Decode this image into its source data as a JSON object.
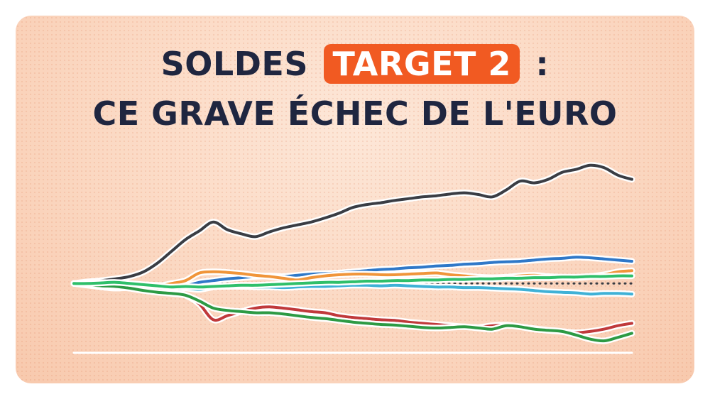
{
  "title": {
    "line1_before": "SOLDES",
    "line1_highlight": "TARGET 2",
    "line1_after": ":",
    "line2": "CE GRAVE ÉCHEC DE L'EURO"
  },
  "colors": {
    "accent": "#f15a22",
    "title_text": "#1f2640",
    "background": "#fbd8c2"
  },
  "chart_data": {
    "type": "line",
    "title": "",
    "xlabel": "",
    "ylabel": "",
    "x": [
      0,
      1,
      2,
      3,
      4,
      5,
      6,
      7,
      8,
      9,
      10,
      11,
      12,
      13,
      14,
      15,
      16,
      17,
      18,
      19,
      20,
      21,
      22,
      23,
      24,
      25,
      26,
      27,
      28,
      29,
      30,
      31,
      32,
      33,
      34,
      35,
      36,
      37,
      38,
      39,
      40
    ],
    "ylim": [
      -1.1,
      2.2
    ],
    "grid": false,
    "legend": "none",
    "series": [
      {
        "color": "#3a3d44",
        "values": [
          0,
          0.03,
          0.05,
          0.08,
          0.12,
          0.2,
          0.35,
          0.55,
          0.75,
          0.9,
          1.05,
          0.92,
          0.85,
          0.8,
          0.88,
          0.95,
          1.0,
          1.05,
          1.12,
          1.2,
          1.3,
          1.35,
          1.38,
          1.42,
          1.45,
          1.48,
          1.5,
          1.53,
          1.55,
          1.52,
          1.48,
          1.6,
          1.75,
          1.72,
          1.78,
          1.9,
          1.95,
          2.02,
          1.98,
          1.85,
          1.78
        ]
      },
      {
        "color": "#2f78c8",
        "values": [
          0,
          -0.02,
          -0.03,
          -0.04,
          -0.03,
          -0.02,
          -0.03,
          -0.05,
          -0.04,
          0.02,
          0.05,
          0.08,
          0.1,
          0.12,
          0.13,
          0.12,
          0.14,
          0.16,
          0.17,
          0.18,
          0.2,
          0.22,
          0.24,
          0.25,
          0.27,
          0.28,
          0.3,
          0.31,
          0.33,
          0.34,
          0.36,
          0.37,
          0.38,
          0.4,
          0.42,
          0.43,
          0.45,
          0.44,
          0.42,
          0.4,
          0.38
        ]
      },
      {
        "color": "#f0953a",
        "values": [
          0,
          0.01,
          0.02,
          0.0,
          -0.05,
          -0.07,
          -0.05,
          0.0,
          0.05,
          0.18,
          0.2,
          0.19,
          0.17,
          0.14,
          0.12,
          0.09,
          0.06,
          0.1,
          0.13,
          0.15,
          0.16,
          0.16,
          0.15,
          0.15,
          0.16,
          0.17,
          0.18,
          0.15,
          0.13,
          0.11,
          0.1,
          0.11,
          0.13,
          0.14,
          0.12,
          0.11,
          0.1,
          0.12,
          0.15,
          0.2,
          0.22
        ]
      },
      {
        "color": "#3fb1d6",
        "values": [
          0,
          -0.03,
          -0.06,
          -0.08,
          -0.07,
          -0.08,
          -0.1,
          -0.1,
          -0.08,
          -0.1,
          -0.06,
          -0.05,
          -0.05,
          -0.06,
          -0.06,
          -0.07,
          -0.06,
          -0.05,
          -0.05,
          -0.04,
          -0.03,
          -0.03,
          -0.04,
          -0.03,
          -0.04,
          -0.05,
          -0.06,
          -0.06,
          -0.07,
          -0.07,
          -0.08,
          -0.09,
          -0.1,
          -0.12,
          -0.14,
          -0.15,
          -0.16,
          -0.18,
          -0.17,
          -0.17,
          -0.18
        ]
      },
      {
        "color": "#c0393b",
        "values": [
          0,
          -0.02,
          -0.04,
          -0.06,
          -0.08,
          -0.1,
          -0.12,
          -0.15,
          -0.2,
          -0.35,
          -0.62,
          -0.55,
          -0.48,
          -0.42,
          -0.4,
          -0.42,
          -0.45,
          -0.48,
          -0.5,
          -0.55,
          -0.58,
          -0.6,
          -0.62,
          -0.63,
          -0.66,
          -0.68,
          -0.7,
          -0.72,
          -0.74,
          -0.75,
          -0.72,
          -0.71,
          -0.74,
          -0.77,
          -0.8,
          -0.82,
          -0.84,
          -0.82,
          -0.78,
          -0.72,
          -0.68
        ]
      },
      {
        "color": "#2d9a44",
        "values": [
          0,
          -0.02,
          -0.04,
          -0.05,
          -0.08,
          -0.12,
          -0.15,
          -0.17,
          -0.2,
          -0.3,
          -0.42,
          -0.46,
          -0.48,
          -0.5,
          -0.5,
          -0.52,
          -0.55,
          -0.58,
          -0.6,
          -0.63,
          -0.66,
          -0.68,
          -0.7,
          -0.71,
          -0.73,
          -0.75,
          -0.76,
          -0.75,
          -0.74,
          -0.76,
          -0.78,
          -0.72,
          -0.74,
          -0.78,
          -0.8,
          -0.82,
          -0.88,
          -0.95,
          -0.98,
          -0.92,
          -0.85
        ]
      },
      {
        "color": "#2fbf6a",
        "values": [
          0,
          0.0,
          0.01,
          0.02,
          0.0,
          -0.02,
          -0.04,
          -0.06,
          -0.05,
          -0.06,
          -0.05,
          -0.04,
          -0.03,
          -0.03,
          -0.02,
          -0.01,
          0.0,
          0.01,
          0.02,
          0.02,
          0.03,
          0.04,
          0.04,
          0.05,
          0.05,
          0.06,
          0.06,
          0.07,
          0.07,
          0.08,
          0.08,
          0.09,
          0.09,
          0.1,
          0.1,
          0.11,
          0.11,
          0.12,
          0.12,
          0.13,
          0.13
        ]
      },
      {
        "color": "#3a3d44",
        "style": "dotted",
        "values": [
          0,
          0,
          0,
          0,
          0,
          0,
          0,
          0,
          0,
          0,
          0,
          0,
          0,
          0,
          0,
          0,
          0,
          0,
          0,
          0,
          0,
          0,
          0,
          0,
          0,
          0,
          0,
          0,
          0,
          0,
          0,
          0,
          0,
          0,
          0,
          0,
          0,
          0,
          0,
          0,
          0
        ]
      }
    ]
  }
}
